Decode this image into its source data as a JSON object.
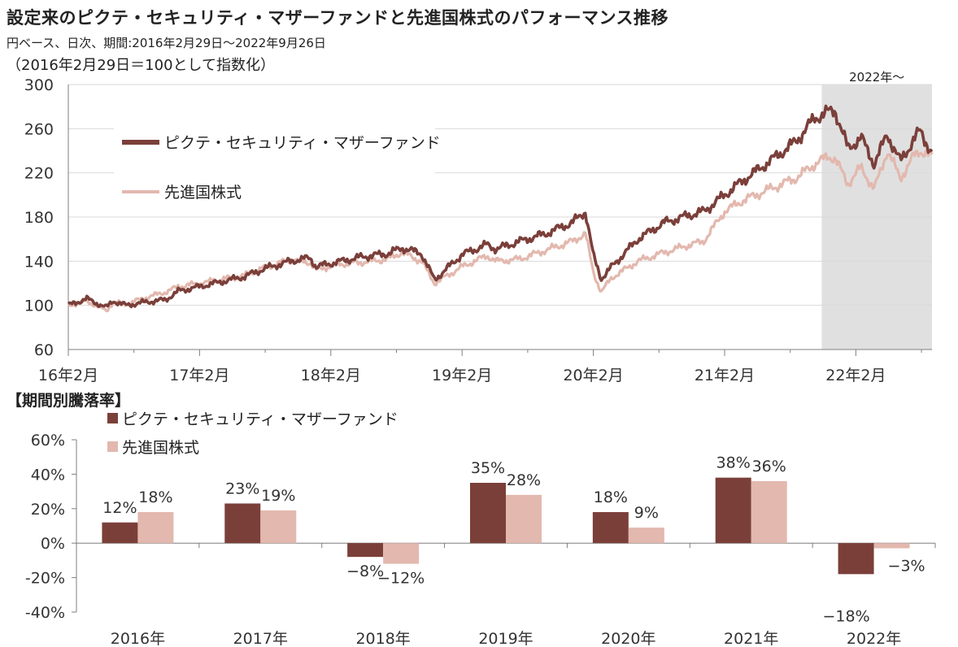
{
  "header": {
    "title": "設定来のピクテ・セキュリティ・マザーファンドと先進国株式のパフォーマンス推移",
    "subtitle": "円ベース、日次、期間:2016年2月29日～2022年9月26日",
    "note": "（2016年2月29日＝100として指数化）",
    "section_title": "【期間別騰落率】"
  },
  "colors": {
    "fund": "#7b3f3a",
    "index": "#e3b8ae",
    "highlight": "#e0e0e0",
    "grid": "#d9d9d9",
    "axis": "#7f7f7f"
  },
  "chart_data": [
    {
      "type": "line",
      "title": "",
      "xlabel": "",
      "ylabel": "",
      "xlim": [
        2016.16,
        2022.74
      ],
      "ylim": [
        60,
        300
      ],
      "yticks": [
        "60",
        "100",
        "140",
        "180",
        "220",
        "260",
        "300"
      ],
      "xticks": [
        "16年2月",
        "17年2月",
        "18年2月",
        "19年2月",
        "20年2月",
        "21年2月",
        "22年2月"
      ],
      "grid": true,
      "legend_position": "top-left",
      "highlight": {
        "label": "2022年～",
        "from": 2021.9,
        "to": 2022.74
      },
      "series": [
        {
          "name": "ピクテ・セキュリティ・マザーファンド",
          "x": [
            2016.16,
            2016.3,
            2016.45,
            2016.5,
            2016.6,
            2016.75,
            2016.9,
            2017.0,
            2017.16,
            2017.35,
            2017.5,
            2017.65,
            2017.85,
            2018.0,
            2018.05,
            2018.2,
            2018.4,
            2018.6,
            2018.7,
            2018.85,
            2018.95,
            2019.16,
            2019.35,
            2019.42,
            2019.6,
            2019.8,
            2020.0,
            2020.1,
            2020.16,
            2020.22,
            2020.3,
            2020.5,
            2020.7,
            2020.9,
            2021.0,
            2021.16,
            2021.3,
            2021.5,
            2021.7,
            2021.85,
            2021.95,
            2022.0,
            2022.1,
            2022.2,
            2022.3,
            2022.4,
            2022.5,
            2022.6,
            2022.65,
            2022.74
          ],
          "values": [
            100,
            106,
            98,
            104,
            100,
            103,
            105,
            113,
            117,
            122,
            126,
            133,
            140,
            143,
            135,
            139,
            144,
            147,
            152,
            147,
            123,
            146,
            155,
            151,
            158,
            165,
            175,
            185,
            145,
            124,
            135,
            160,
            175,
            182,
            185,
            200,
            213,
            230,
            248,
            270,
            275,
            277,
            242,
            252,
            228,
            255,
            230,
            250,
            258,
            238
          ]
        },
        {
          "name": "先進国株式",
          "x": [
            2016.16,
            2016.3,
            2016.45,
            2016.5,
            2016.6,
            2016.75,
            2016.9,
            2017.0,
            2017.16,
            2017.35,
            2017.5,
            2017.65,
            2017.85,
            2018.0,
            2018.05,
            2018.2,
            2018.4,
            2018.6,
            2018.7,
            2018.85,
            2018.95,
            2019.16,
            2019.35,
            2019.42,
            2019.6,
            2019.8,
            2020.0,
            2020.1,
            2020.16,
            2020.22,
            2020.3,
            2020.5,
            2020.7,
            2020.9,
            2021.0,
            2021.16,
            2021.3,
            2021.5,
            2021.7,
            2021.85,
            2021.95,
            2022.0,
            2022.1,
            2022.2,
            2022.3,
            2022.4,
            2022.5,
            2022.6,
            2022.65,
            2022.74
          ],
          "values": [
            100,
            104,
            95,
            103,
            101,
            107,
            112,
            117,
            120,
            124,
            127,
            134,
            141,
            139,
            132,
            137,
            139,
            142,
            148,
            140,
            120,
            135,
            145,
            140,
            142,
            150,
            158,
            165,
            130,
            112,
            125,
            140,
            148,
            155,
            158,
            185,
            195,
            205,
            215,
            228,
            235,
            233,
            210,
            225,
            205,
            240,
            215,
            235,
            240,
            235
          ]
        }
      ]
    },
    {
      "type": "bar",
      "title": "",
      "xlabel": "",
      "ylabel": "",
      "ylim": [
        -40,
        60
      ],
      "yticks": [
        "-40%",
        "-20%",
        "0%",
        "20%",
        "40%",
        "60%"
      ],
      "legend_position": "top-left",
      "categories": [
        "2016年",
        "2017年",
        "2018年",
        "2019年",
        "2020年",
        "2021年",
        "2022年"
      ],
      "series": [
        {
          "name": "ピクテ・セキュリティ・マザーファンド",
          "values": [
            12,
            23,
            -8,
            35,
            18,
            38,
            -18
          ],
          "labels": [
            "12%",
            "23%",
            "−8%",
            "35%",
            "18%",
            "38%",
            "−18%"
          ]
        },
        {
          "name": "先進国株式",
          "values": [
            18,
            19,
            -12,
            28,
            9,
            36,
            -3
          ],
          "labels": [
            "18%",
            "19%",
            "−12%",
            "28%",
            "9%",
            "36%",
            "−3%"
          ]
        }
      ]
    }
  ]
}
